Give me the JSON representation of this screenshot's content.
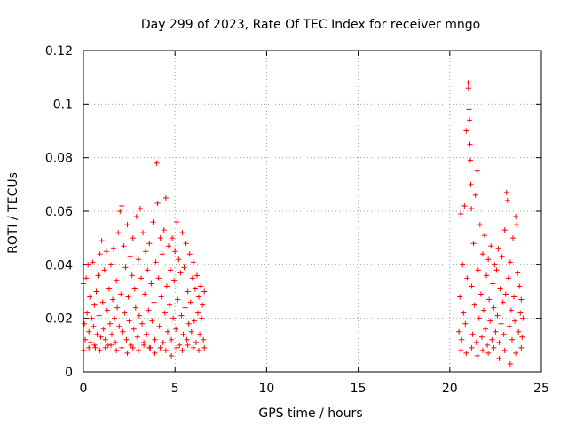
{
  "chart_data": {
    "type": "scatter",
    "title": "Day 299 of 2023, Rate Of TEC Index for receiver mngo",
    "xlabel": "GPS time / hours",
    "ylabel": "ROTI / TECUs",
    "xlim": [
      0,
      25
    ],
    "ylim": [
      0,
      0.12
    ],
    "xticks": [
      0,
      5,
      10,
      15,
      20,
      25
    ],
    "xtick_labels": [
      "0",
      "5",
      "10",
      "15",
      "20",
      "25"
    ],
    "yticks": [
      0,
      0.02,
      0.04,
      0.06,
      0.08,
      0.1,
      0.12
    ],
    "ytick_labels": [
      "0",
      "0.02",
      "0.04",
      "0.06",
      "0.08",
      "0.1",
      "0.12"
    ],
    "grid": true,
    "marker": "+",
    "color": "#ff0000",
    "series": [
      {
        "name": "ROTI",
        "points": [
          [
            0.0,
            0.033
          ],
          [
            0.05,
            0.018
          ],
          [
            0.1,
            0.012
          ],
          [
            0.15,
            0.035
          ],
          [
            0.2,
            0.022
          ],
          [
            0.25,
            0.04
          ],
          [
            0.3,
            0.015
          ],
          [
            0.35,
            0.028
          ],
          [
            0.4,
            0.011
          ],
          [
            0.45,
            0.02
          ],
          [
            0.5,
            0.041
          ],
          [
            0.55,
            0.017
          ],
          [
            0.6,
            0.025
          ],
          [
            0.65,
            0.009
          ],
          [
            0.7,
            0.03
          ],
          [
            0.75,
            0.014
          ],
          [
            0.8,
            0.036
          ],
          [
            0.85,
            0.021
          ],
          [
            0.9,
            0.044
          ],
          [
            0.95,
            0.013
          ],
          [
            1.0,
            0.049
          ],
          [
            1.05,
            0.026
          ],
          [
            1.1,
            0.016
          ],
          [
            1.15,
            0.038
          ],
          [
            1.2,
            0.012
          ],
          [
            1.25,
            0.045
          ],
          [
            1.3,
            0.023
          ],
          [
            1.35,
            0.01
          ],
          [
            1.4,
            0.031
          ],
          [
            1.45,
            0.018
          ],
          [
            1.5,
            0.04
          ],
          [
            1.55,
            0.014
          ],
          [
            1.6,
            0.027
          ],
          [
            1.65,
            0.046
          ],
          [
            1.7,
            0.02
          ],
          [
            1.75,
            0.011
          ],
          [
            1.8,
            0.034
          ],
          [
            1.85,
            0.024
          ],
          [
            1.9,
            0.052
          ],
          [
            1.95,
            0.017
          ],
          [
            2.0,
            0.06
          ],
          [
            2.05,
            0.029
          ],
          [
            2.1,
            0.062
          ],
          [
            2.15,
            0.015
          ],
          [
            2.2,
            0.047
          ],
          [
            2.25,
            0.022
          ],
          [
            2.3,
            0.039
          ],
          [
            2.35,
            0.012
          ],
          [
            2.4,
            0.055
          ],
          [
            2.45,
            0.028
          ],
          [
            2.5,
            0.019
          ],
          [
            2.55,
            0.043
          ],
          [
            2.6,
            0.01
          ],
          [
            2.65,
            0.036
          ],
          [
            2.7,
            0.05
          ],
          [
            2.75,
            0.016
          ],
          [
            2.8,
            0.031
          ],
          [
            2.85,
            0.024
          ],
          [
            2.9,
            0.058
          ],
          [
            2.95,
            0.013
          ],
          [
            3.0,
            0.042
          ],
          [
            3.05,
            0.021
          ],
          [
            3.1,
            0.061
          ],
          [
            3.15,
            0.035
          ],
          [
            3.2,
            0.018
          ],
          [
            3.25,
            0.052
          ],
          [
            3.3,
            0.011
          ],
          [
            3.35,
            0.029
          ],
          [
            3.4,
            0.045
          ],
          [
            3.45,
            0.014
          ],
          [
            3.5,
            0.038
          ],
          [
            3.55,
            0.023
          ],
          [
            3.6,
            0.048
          ],
          [
            3.65,
            0.009
          ],
          [
            3.7,
            0.033
          ],
          [
            3.75,
            0.019
          ],
          [
            3.8,
            0.056
          ],
          [
            3.85,
            0.026
          ],
          [
            3.9,
            0.012
          ],
          [
            3.95,
            0.041
          ],
          [
            4.0,
            0.078
          ],
          [
            4.05,
            0.063
          ],
          [
            4.1,
            0.035
          ],
          [
            4.15,
            0.017
          ],
          [
            4.2,
            0.05
          ],
          [
            4.25,
            0.028
          ],
          [
            4.3,
            0.044
          ],
          [
            4.35,
            0.011
          ],
          [
            4.4,
            0.053
          ],
          [
            4.45,
            0.022
          ],
          [
            4.5,
            0.065
          ],
          [
            4.55,
            0.032
          ],
          [
            4.6,
            0.015
          ],
          [
            4.65,
            0.047
          ],
          [
            4.7,
            0.025
          ],
          [
            4.75,
            0.038
          ],
          [
            4.8,
            0.012
          ],
          [
            4.85,
            0.05
          ],
          [
            4.9,
            0.02
          ],
          [
            4.95,
            0.034
          ],
          [
            5.0,
            0.045
          ],
          [
            5.05,
            0.016
          ],
          [
            5.1,
            0.056
          ],
          [
            5.15,
            0.027
          ],
          [
            5.2,
            0.042
          ],
          [
            5.25,
            0.01
          ],
          [
            5.3,
            0.037
          ],
          [
            5.35,
            0.021
          ],
          [
            5.4,
            0.052
          ],
          [
            5.45,
            0.014
          ],
          [
            5.5,
            0.039
          ],
          [
            5.55,
            0.024
          ],
          [
            5.6,
            0.048
          ],
          [
            5.65,
            0.012
          ],
          [
            5.7,
            0.03
          ],
          [
            5.75,
            0.018
          ],
          [
            5.8,
            0.044
          ],
          [
            5.85,
            0.026
          ],
          [
            5.9,
            0.015
          ],
          [
            5.95,
            0.035
          ],
          [
            6.0,
            0.041
          ],
          [
            6.05,
            0.019
          ],
          [
            6.1,
            0.031
          ],
          [
            6.15,
            0.011
          ],
          [
            6.2,
            0.036
          ],
          [
            6.25,
            0.022
          ],
          [
            6.3,
            0.028
          ],
          [
            6.35,
            0.014
          ],
          [
            6.4,
            0.032
          ],
          [
            6.45,
            0.02
          ],
          [
            6.5,
            0.025
          ],
          [
            6.55,
            0.012
          ],
          [
            6.6,
            0.03
          ],
          [
            0.02,
            0.008
          ],
          [
            0.3,
            0.009
          ],
          [
            0.6,
            0.01
          ],
          [
            0.9,
            0.008
          ],
          [
            1.2,
            0.009
          ],
          [
            1.5,
            0.01
          ],
          [
            1.8,
            0.008
          ],
          [
            2.1,
            0.009
          ],
          [
            2.4,
            0.007
          ],
          [
            2.7,
            0.009
          ],
          [
            3.0,
            0.008
          ],
          [
            3.3,
            0.01
          ],
          [
            3.6,
            0.009
          ],
          [
            3.9,
            0.007
          ],
          [
            4.2,
            0.009
          ],
          [
            4.5,
            0.008
          ],
          [
            4.8,
            0.006
          ],
          [
            5.1,
            0.009
          ],
          [
            5.4,
            0.008
          ],
          [
            5.7,
            0.01
          ],
          [
            6.0,
            0.009
          ],
          [
            6.3,
            0.008
          ],
          [
            6.6,
            0.009
          ],
          [
            20.5,
            0.015
          ],
          [
            20.55,
            0.028
          ],
          [
            20.6,
            0.059
          ],
          [
            20.65,
            0.012
          ],
          [
            20.7,
            0.04
          ],
          [
            20.75,
            0.022
          ],
          [
            20.8,
            0.062
          ],
          [
            20.85,
            0.018
          ],
          [
            20.9,
            0.09
          ],
          [
            20.95,
            0.035
          ],
          [
            21.0,
            0.108
          ],
          [
            21.02,
            0.106
          ],
          [
            21.05,
            0.098
          ],
          [
            21.08,
            0.094
          ],
          [
            21.1,
            0.085
          ],
          [
            21.12,
            0.079
          ],
          [
            21.15,
            0.07
          ],
          [
            21.18,
            0.061
          ],
          [
            21.2,
            0.032
          ],
          [
            21.25,
            0.014
          ],
          [
            21.3,
            0.048
          ],
          [
            21.35,
            0.025
          ],
          [
            21.4,
            0.066
          ],
          [
            21.45,
            0.011
          ],
          [
            21.5,
            0.075
          ],
          [
            21.55,
            0.038
          ],
          [
            21.6,
            0.02
          ],
          [
            21.65,
            0.055
          ],
          [
            21.7,
            0.029
          ],
          [
            21.75,
            0.013
          ],
          [
            21.8,
            0.044
          ],
          [
            21.85,
            0.023
          ],
          [
            21.9,
            0.051
          ],
          [
            21.95,
            0.016
          ],
          [
            22.0,
            0.036
          ],
          [
            22.05,
            0.01
          ],
          [
            22.1,
            0.042
          ],
          [
            22.15,
            0.027
          ],
          [
            22.2,
            0.019
          ],
          [
            22.25,
            0.047
          ],
          [
            22.3,
            0.012
          ],
          [
            22.35,
            0.033
          ],
          [
            22.4,
            0.024
          ],
          [
            22.45,
            0.04
          ],
          [
            22.5,
            0.015
          ],
          [
            22.55,
            0.038
          ],
          [
            22.6,
            0.021
          ],
          [
            22.65,
            0.046
          ],
          [
            22.7,
            0.011
          ],
          [
            22.75,
            0.031
          ],
          [
            22.8,
            0.018
          ],
          [
            22.85,
            0.043
          ],
          [
            22.9,
            0.026
          ],
          [
            22.95,
            0.014
          ],
          [
            23.0,
            0.053
          ],
          [
            23.05,
            0.029
          ],
          [
            23.1,
            0.067
          ],
          [
            23.15,
            0.064
          ],
          [
            23.2,
            0.035
          ],
          [
            23.25,
            0.017
          ],
          [
            23.3,
            0.041
          ],
          [
            23.35,
            0.023
          ],
          [
            23.4,
            0.012
          ],
          [
            23.45,
            0.05
          ],
          [
            23.5,
            0.028
          ],
          [
            23.55,
            0.019
          ],
          [
            23.6,
            0.058
          ],
          [
            23.65,
            0.055
          ],
          [
            23.7,
            0.037
          ],
          [
            23.75,
            0.015
          ],
          [
            23.8,
            0.032
          ],
          [
            23.85,
            0.022
          ],
          [
            23.9,
            0.027
          ],
          [
            23.95,
            0.013
          ],
          [
            24.0,
            0.02
          ],
          [
            20.6,
            0.008
          ],
          [
            20.9,
            0.007
          ],
          [
            21.2,
            0.009
          ],
          [
            21.5,
            0.006
          ],
          [
            21.8,
            0.008
          ],
          [
            22.1,
            0.007
          ],
          [
            22.4,
            0.009
          ],
          [
            22.7,
            0.005
          ],
          [
            23.0,
            0.008
          ],
          [
            23.3,
            0.003
          ],
          [
            23.6,
            0.007
          ],
          [
            23.9,
            0.009
          ]
        ]
      }
    ]
  }
}
